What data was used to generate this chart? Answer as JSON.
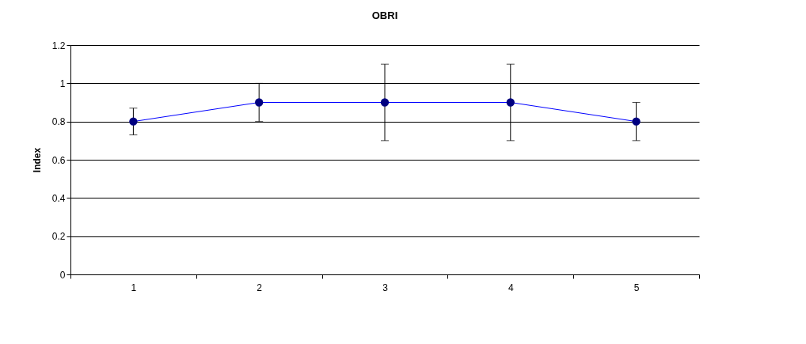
{
  "chart_data": {
    "type": "line",
    "title": "OBRI",
    "ylabel": "Index",
    "categories": [
      "1",
      "2",
      "3",
      "4",
      "5"
    ],
    "series": [
      {
        "color": "#0000ff",
        "values": [
          0.8,
          0.9,
          0.9,
          0.9,
          0.8
        ],
        "errors": [
          [
            0.73,
            0.87
          ],
          [
            0.8,
            1.0
          ],
          [
            0.7,
            1.1
          ],
          [
            0.7,
            1.1
          ],
          [
            0.7,
            0.9
          ]
        ]
      }
    ],
    "ylim": [
      0,
      1.2
    ],
    "yticks": [
      0,
      0.2,
      0.4,
      0.6,
      0.8,
      1,
      1.2
    ],
    "grid": "y",
    "marker": "circle",
    "line_style": "solid",
    "legend": false
  }
}
